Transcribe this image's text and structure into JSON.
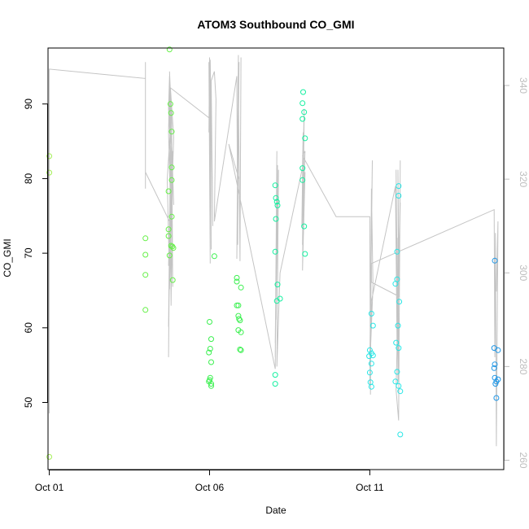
{
  "chart_data": {
    "type": "scatter",
    "title": "ATOM3 Southbound CO_GMI",
    "xlabel": "Date",
    "ylabel": "CO_GMI",
    "x_ticks": [
      {
        "label": "Oct 01",
        "day": 1
      },
      {
        "label": "Oct 06",
        "day": 6
      },
      {
        "label": "Oct 11",
        "day": 11
      }
    ],
    "xlim": [
      0.96,
      15.18
    ],
    "y_ticks": [
      50,
      60,
      70,
      80,
      90
    ],
    "ylim": [
      41.0,
      97.5
    ],
    "y2_ticks": [
      260,
      280,
      300,
      320,
      340
    ],
    "y2lim": [
      258.0,
      348.0
    ],
    "grid": false,
    "series": [
      {
        "color": "#a6f05a",
        "points": [
          [
            1.0,
            83.0
          ],
          [
            1.0,
            80.8
          ],
          [
            1.0,
            42.7
          ]
        ]
      },
      {
        "color": "#64f046",
        "points": [
          [
            4.0,
            72.0
          ],
          [
            4.0,
            69.8
          ],
          [
            4.0,
            67.1
          ],
          [
            4.0,
            62.4
          ],
          [
            4.75,
            97.3
          ],
          [
            4.72,
            78.3
          ],
          [
            4.72,
            73.2
          ],
          [
            4.72,
            72.3
          ],
          [
            4.78,
            90.0
          ],
          [
            4.8,
            88.8
          ],
          [
            4.82,
            86.3
          ],
          [
            4.82,
            81.5
          ],
          [
            4.82,
            79.8
          ],
          [
            4.82,
            74.9
          ],
          [
            4.8,
            71.0
          ],
          [
            4.84,
            70.9
          ],
          [
            4.87,
            70.7
          ],
          [
            4.75,
            69.7
          ],
          [
            4.85,
            66.4
          ]
        ]
      },
      {
        "color": "#3cf050",
        "points": [
          [
            6.0,
            60.8
          ],
          [
            6.02,
            57.2
          ],
          [
            5.98,
            56.7
          ],
          [
            6.05,
            58.5
          ],
          [
            6.05,
            55.4
          ],
          [
            6.02,
            53.3
          ],
          [
            6.0,
            53.0
          ],
          [
            5.98,
            52.8
          ],
          [
            6.05,
            52.5
          ],
          [
            6.05,
            52.2
          ],
          [
            6.15,
            69.6
          ],
          [
            6.85,
            66.7
          ],
          [
            6.85,
            66.2
          ],
          [
            6.98,
            65.4
          ],
          [
            6.85,
            63.0
          ],
          [
            6.9,
            63.0
          ],
          [
            6.9,
            61.6
          ],
          [
            6.92,
            61.2
          ],
          [
            6.95,
            61.0
          ],
          [
            6.9,
            59.7
          ],
          [
            6.98,
            59.4
          ],
          [
            6.95,
            57.1
          ],
          [
            6.98,
            57.0
          ]
        ]
      },
      {
        "color": "#14f0a0",
        "points": [
          [
            8.05,
            79.1
          ],
          [
            8.07,
            77.4
          ],
          [
            8.1,
            76.9
          ],
          [
            8.12,
            76.4
          ],
          [
            8.07,
            74.6
          ],
          [
            8.05,
            70.2
          ],
          [
            8.12,
            65.8
          ],
          [
            8.1,
            63.6
          ],
          [
            8.2,
            63.9
          ],
          [
            8.05,
            53.7
          ],
          [
            8.05,
            52.5
          ],
          [
            8.92,
            91.6
          ],
          [
            8.9,
            90.1
          ],
          [
            8.95,
            88.9
          ],
          [
            8.9,
            88.0
          ],
          [
            8.98,
            85.4
          ],
          [
            8.9,
            81.4
          ],
          [
            8.9,
            79.8
          ],
          [
            8.95,
            73.6
          ],
          [
            8.98,
            69.9
          ]
        ]
      },
      {
        "color": "#28e6e6",
        "points": [
          [
            11.05,
            61.9
          ],
          [
            11.0,
            57.0
          ],
          [
            11.05,
            56.6
          ],
          [
            10.98,
            56.2
          ],
          [
            11.1,
            56.3
          ],
          [
            11.05,
            55.2
          ],
          [
            11.0,
            54.0
          ],
          [
            11.02,
            52.7
          ],
          [
            11.1,
            60.3
          ],
          [
            11.05,
            52.1
          ],
          [
            11.8,
            65.9
          ],
          [
            11.85,
            66.5
          ],
          [
            11.85,
            70.2
          ],
          [
            11.82,
            58.0
          ],
          [
            11.88,
            60.3
          ],
          [
            11.9,
            79.0
          ],
          [
            11.9,
            77.7
          ],
          [
            11.92,
            63.5
          ],
          [
            11.9,
            57.3
          ],
          [
            11.85,
            54.1
          ],
          [
            11.8,
            52.8
          ],
          [
            11.9,
            52.2
          ],
          [
            11.95,
            51.5
          ],
          [
            11.95,
            45.7
          ]
        ]
      },
      {
        "color": "#1e96e6",
        "points": [
          [
            14.9,
            69.0
          ],
          [
            14.88,
            57.3
          ],
          [
            15.0,
            57.0
          ],
          [
            14.9,
            55.1
          ],
          [
            14.88,
            54.6
          ],
          [
            14.9,
            53.3
          ],
          [
            15.0,
            53.1
          ],
          [
            14.95,
            52.8
          ],
          [
            14.92,
            52.5
          ],
          [
            14.95,
            50.6
          ]
        ]
      }
    ],
    "trace_y2": [
      [
        1.0,
        270
      ],
      [
        1.0,
        343.5
      ],
      [
        4.0,
        341.5
      ],
      [
        4.0,
        330.0
      ],
      [
        4.0,
        318.0
      ],
      [
        4.0,
        333.0
      ],
      [
        4.0,
        345.0
      ],
      [
        4.0,
        321.5
      ],
      [
        4.75,
        311.0
      ],
      [
        4.72,
        282.0
      ],
      [
        4.78,
        327.0
      ],
      [
        4.72,
        288.5
      ],
      [
        4.82,
        326.0
      ],
      [
        4.75,
        343.0
      ],
      [
        4.82,
        332.0
      ],
      [
        4.75,
        296.5
      ],
      [
        4.85,
        326.0
      ],
      [
        4.8,
        293.0
      ],
      [
        4.75,
        341.0
      ],
      [
        4.72,
        330.0
      ],
      [
        4.78,
        315.0
      ],
      [
        4.72,
        301.5
      ],
      [
        4.82,
        330.0
      ],
      [
        4.85,
        297.0
      ],
      [
        4.75,
        338.0
      ],
      [
        4.88,
        314.5
      ],
      [
        4.75,
        342.0
      ],
      [
        4.72,
        335.0
      ],
      [
        4.78,
        327.5
      ],
      [
        4.8,
        333.0
      ],
      [
        4.68,
        320.0
      ],
      [
        4.75,
        298.5
      ],
      [
        4.82,
        320.5
      ],
      [
        4.75,
        300.0
      ],
      [
        4.88,
        329.0
      ],
      [
        4.78,
        339.5
      ],
      [
        6.0,
        333.0
      ],
      [
        6.02,
        302.0
      ],
      [
        5.98,
        345.0
      ],
      [
        6.05,
        339.0
      ],
      [
        5.98,
        330.0
      ],
      [
        6.0,
        346.0
      ],
      [
        6.05,
        305.0
      ],
      [
        6.02,
        345.5
      ],
      [
        6.1,
        310.0
      ],
      [
        6.05,
        341.0
      ],
      [
        6.15,
        343.0
      ],
      [
        6.2,
        337.0
      ],
      [
        6.15,
        311.0
      ],
      [
        6.85,
        342.0
      ],
      [
        6.88,
        306.0
      ],
      [
        6.9,
        346.5
      ],
      [
        6.85,
        303.0
      ],
      [
        6.92,
        345.0
      ],
      [
        6.88,
        316.0
      ],
      [
        6.9,
        339.5
      ],
      [
        6.95,
        302.5
      ],
      [
        6.98,
        346.0
      ],
      [
        6.95,
        306.0
      ],
      [
        6.92,
        320.0
      ],
      [
        6.6,
        327.5
      ],
      [
        8.05,
        279.5
      ],
      [
        8.1,
        326.0
      ],
      [
        8.05,
        282.0
      ],
      [
        8.12,
        323.0
      ],
      [
        8.07,
        290.0
      ],
      [
        8.1,
        317.0
      ],
      [
        8.05,
        285.0
      ],
      [
        8.15,
        322.0
      ],
      [
        8.1,
        280.0
      ],
      [
        8.2,
        300.0
      ],
      [
        8.9,
        322.5
      ],
      [
        8.92,
        330.0
      ],
      [
        8.88,
        310.0
      ],
      [
        8.95,
        335.0
      ],
      [
        8.9,
        300.5
      ],
      [
        8.98,
        321.5
      ],
      [
        8.9,
        306.0
      ],
      [
        8.95,
        333.5
      ],
      [
        8.92,
        314.5
      ],
      [
        8.98,
        326.0
      ],
      [
        8.9,
        325.0
      ],
      [
        9.95,
        312.0
      ],
      [
        11.0,
        312.0
      ],
      [
        11.02,
        274.0
      ],
      [
        11.05,
        316.5
      ],
      [
        11.0,
        276.0
      ],
      [
        11.08,
        324.0
      ],
      [
        11.02,
        295.0
      ],
      [
        11.05,
        312.0
      ],
      [
        11.0,
        280.0
      ],
      [
        11.1,
        297.0
      ],
      [
        11.05,
        318.0
      ],
      [
        11.02,
        290.0
      ],
      [
        11.05,
        288.0
      ],
      [
        11.05,
        294.0
      ],
      [
        11.8,
        318.5
      ],
      [
        11.85,
        284.0
      ],
      [
        11.82,
        322.0
      ],
      [
        11.88,
        277.0
      ],
      [
        11.85,
        307.5
      ],
      [
        11.9,
        277.0
      ],
      [
        11.88,
        322.0
      ],
      [
        11.92,
        295.0
      ],
      [
        11.95,
        324.0
      ],
      [
        11.9,
        268.5
      ],
      [
        11.82,
        275.0
      ],
      [
        11.95,
        315.0
      ],
      [
        11.9,
        295.0
      ],
      [
        11.05,
        298.0
      ],
      [
        11.05,
        302.0
      ],
      [
        14.88,
        313.5
      ],
      [
        14.9,
        282.0
      ],
      [
        14.92,
        308.5
      ],
      [
        14.95,
        263.0
      ],
      [
        15.0,
        311.0
      ],
      [
        14.95,
        296.0
      ],
      [
        15.0,
        310.5
      ]
    ]
  }
}
